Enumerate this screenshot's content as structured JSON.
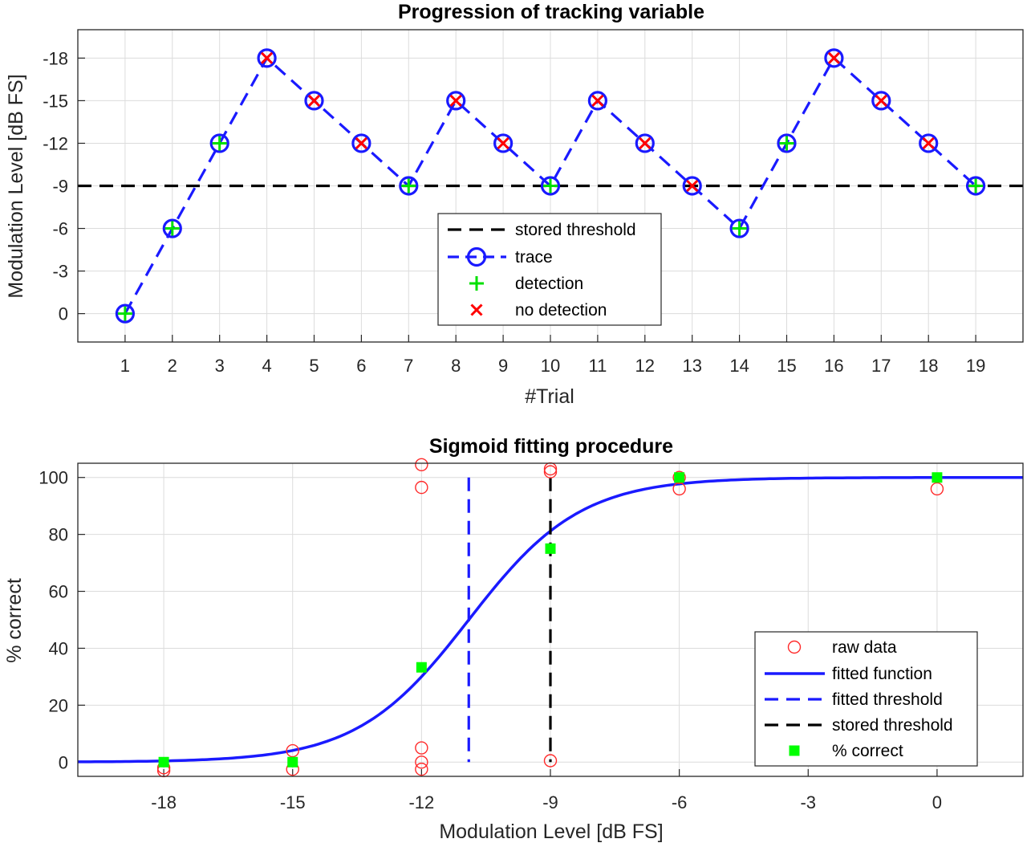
{
  "chart_data": [
    {
      "type": "line",
      "title": "Progression of tracking variable",
      "xlabel": "#Trial",
      "ylabel": "Modulation Level [dB FS]",
      "xlim": [
        0,
        20
      ],
      "ylim": [
        -20,
        2
      ],
      "y_reversed": true,
      "xticks": [
        1,
        2,
        3,
        4,
        5,
        6,
        7,
        8,
        9,
        10,
        11,
        12,
        13,
        14,
        15,
        16,
        17,
        18,
        19
      ],
      "yticks": [
        0,
        -3,
        -6,
        -9,
        -12,
        -15,
        -18
      ],
      "grid": true,
      "legend_position": "bottom-center",
      "trials": [
        1,
        2,
        3,
        4,
        5,
        6,
        7,
        8,
        9,
        10,
        11,
        12,
        13,
        14,
        15,
        16,
        17,
        18,
        19
      ],
      "levels": [
        0,
        -6,
        -12,
        -18,
        -15,
        -12,
        -9,
        -15,
        -12,
        -9,
        -15,
        -12,
        -9,
        -6,
        -12,
        -18,
        -15,
        -12,
        -9
      ],
      "detected": [
        true,
        true,
        true,
        false,
        false,
        false,
        true,
        false,
        false,
        true,
        false,
        false,
        false,
        true,
        true,
        false,
        false,
        false,
        true
      ],
      "stored_threshold": -9,
      "series": [
        {
          "name": "stored threshold",
          "style": "dashed",
          "color": "#000000"
        },
        {
          "name": "trace",
          "style": "dashed-circle",
          "color": "#1a1aff"
        },
        {
          "name": "detection",
          "style": "plus",
          "color": "#00ff00"
        },
        {
          "name": "no detection",
          "style": "cross",
          "color": "#ff0000"
        }
      ]
    },
    {
      "type": "scatter",
      "title": "Sigmoid fitting procedure",
      "xlabel": "Modulation Level [dB FS]",
      "ylabel": "% correct",
      "xlim": [
        -20,
        2
      ],
      "ylim": [
        -5,
        105
      ],
      "xticks": [
        -18,
        -15,
        -12,
        -9,
        -6,
        -3,
        0
      ],
      "yticks": [
        0,
        20,
        40,
        60,
        80,
        100
      ],
      "grid": true,
      "legend_position": "bottom-right",
      "raw_data": [
        [
          -18,
          -2
        ],
        [
          -18,
          -3
        ],
        [
          -15,
          4
        ],
        [
          -15,
          -2.5
        ],
        [
          -12,
          104.5
        ],
        [
          -12,
          96.5
        ],
        [
          -12,
          5
        ],
        [
          -12,
          0
        ],
        [
          -12,
          -2.5
        ],
        [
          -9,
          103
        ],
        [
          -9,
          102
        ],
        [
          -9,
          0.5
        ],
        [
          -6,
          100
        ],
        [
          -6,
          96
        ],
        [
          0,
          96
        ]
      ],
      "percent_correct": [
        [
          -18,
          0
        ],
        [
          -15,
          0
        ],
        [
          -12,
          33.3
        ],
        [
          -9,
          75
        ],
        [
          -6,
          100
        ],
        [
          0,
          100
        ]
      ],
      "fitted_threshold": -10.9,
      "fitted_slope_scale": 1.3,
      "stored_threshold": -9,
      "series": [
        {
          "name": "raw data",
          "style": "open-circle",
          "color": "#ff2a2a"
        },
        {
          "name": "fitted function",
          "style": "solid",
          "color": "#1a1aff"
        },
        {
          "name": "fitted threshold",
          "style": "dashed",
          "color": "#1a1aff"
        },
        {
          "name": "stored threshold",
          "style": "dashed",
          "color": "#000000"
        },
        {
          "name": "% correct",
          "style": "filled-square",
          "color": "#00ff00"
        }
      ]
    }
  ]
}
